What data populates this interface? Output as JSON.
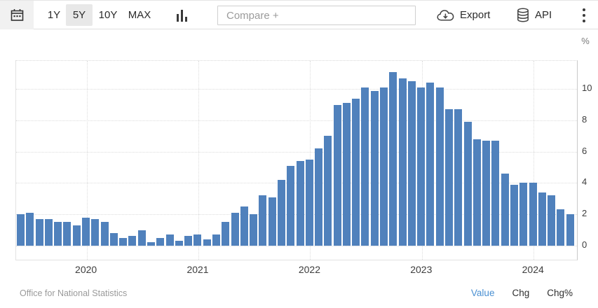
{
  "toolbar": {
    "calendar_icon": "calendar-icon",
    "ranges": [
      "1Y",
      "5Y",
      "10Y",
      "MAX"
    ],
    "selected_range": "5Y",
    "columns_icon": "column-chart-icon",
    "compare_placeholder": "Compare +",
    "export_label": "Export",
    "export_icon": "cloud-download-icon",
    "api_label": "API",
    "api_icon": "database-icon",
    "menu_icon": "kebab-menu-icon"
  },
  "chart_data": {
    "type": "bar",
    "title": "",
    "unit_label": "%",
    "bar_color": "#5081BC",
    "grid": "dotted",
    "legend_position": "none",
    "months": [
      "2019-06",
      "2019-07",
      "2019-08",
      "2019-09",
      "2019-10",
      "2019-11",
      "2019-12",
      "2020-01",
      "2020-02",
      "2020-03",
      "2020-04",
      "2020-05",
      "2020-06",
      "2020-07",
      "2020-08",
      "2020-09",
      "2020-10",
      "2020-11",
      "2020-12",
      "2021-01",
      "2021-02",
      "2021-03",
      "2021-04",
      "2021-05",
      "2021-06",
      "2021-07",
      "2021-08",
      "2021-09",
      "2021-10",
      "2021-11",
      "2021-12",
      "2022-01",
      "2022-02",
      "2022-03",
      "2022-04",
      "2022-05",
      "2022-06",
      "2022-07",
      "2022-08",
      "2022-09",
      "2022-10",
      "2022-11",
      "2022-12",
      "2023-01",
      "2023-02",
      "2023-03",
      "2023-04",
      "2023-05",
      "2023-06",
      "2023-07",
      "2023-08",
      "2023-09",
      "2023-10",
      "2023-11",
      "2023-12",
      "2024-01",
      "2024-02",
      "2024-03",
      "2024-04",
      "2024-05"
    ],
    "values": [
      2.0,
      2.1,
      1.7,
      1.7,
      1.5,
      1.5,
      1.3,
      1.8,
      1.7,
      1.5,
      0.8,
      0.5,
      0.6,
      1.0,
      0.2,
      0.5,
      0.7,
      0.3,
      0.6,
      0.7,
      0.4,
      0.7,
      1.5,
      2.1,
      2.5,
      2.0,
      3.2,
      3.1,
      4.2,
      5.1,
      5.4,
      5.5,
      6.2,
      7.0,
      9.0,
      9.1,
      9.4,
      10.1,
      9.9,
      10.1,
      11.1,
      10.7,
      10.5,
      10.1,
      10.4,
      10.1,
      8.7,
      8.7,
      7.9,
      6.8,
      6.7,
      6.7,
      4.6,
      3.9,
      4.0,
      4.0,
      3.4,
      3.2,
      2.3,
      2.0
    ],
    "y_ticks": [
      0,
      2,
      4,
      6,
      8,
      10
    ],
    "ylim": [
      -0.9,
      11.8
    ],
    "year_ticks": [
      {
        "label": "2020",
        "month_index": 7
      },
      {
        "label": "2021",
        "month_index": 19
      },
      {
        "label": "2022",
        "month_index": 31
      },
      {
        "label": "2023",
        "month_index": 43
      },
      {
        "label": "2024",
        "month_index": 55
      }
    ]
  },
  "footer": {
    "source": "Office for National Statistics",
    "modes": [
      "Value",
      "Chg",
      "Chg%"
    ],
    "active_mode": "Value"
  }
}
